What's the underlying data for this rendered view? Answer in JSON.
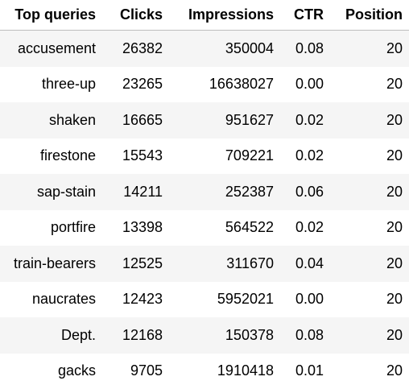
{
  "chart_data": {
    "type": "table",
    "columns": [
      "Top queries",
      "Clicks",
      "Impressions",
      "CTR",
      "Position"
    ],
    "rows": [
      [
        "accusement",
        "26382",
        "350004",
        "0.08",
        "20"
      ],
      [
        "three-up",
        "23265",
        "16638027",
        "0.00",
        "20"
      ],
      [
        "shaken",
        "16665",
        "951627",
        "0.02",
        "20"
      ],
      [
        "firestone",
        "15543",
        "709221",
        "0.02",
        "20"
      ],
      [
        "sap-stain",
        "14211",
        "252387",
        "0.06",
        "20"
      ],
      [
        "portfire",
        "13398",
        "564522",
        "0.02",
        "20"
      ],
      [
        "train-bearers",
        "12525",
        "311670",
        "0.04",
        "20"
      ],
      [
        "naucrates",
        "12423",
        "5952021",
        "0.00",
        "20"
      ],
      [
        "Dept.",
        "12168",
        "150378",
        "0.08",
        "20"
      ],
      [
        "gacks",
        "9705",
        "1910418",
        "0.01",
        "20"
      ]
    ]
  }
}
